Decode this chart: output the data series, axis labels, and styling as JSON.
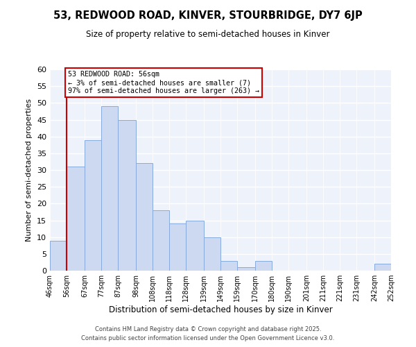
{
  "title": "53, REDWOOD ROAD, KINVER, STOURBRIDGE, DY7 6JP",
  "subtitle": "Size of property relative to semi-detached houses in Kinver",
  "xlabel": "Distribution of semi-detached houses by size in Kinver",
  "ylabel": "Number of semi-detached properties",
  "bar_edges": [
    46,
    56,
    67,
    77,
    87,
    98,
    108,
    118,
    128,
    139,
    149,
    159,
    170,
    180,
    190,
    201,
    211,
    221,
    231,
    242,
    252
  ],
  "bar_heights": [
    9,
    31,
    39,
    49,
    45,
    32,
    18,
    14,
    15,
    10,
    3,
    1,
    3,
    0,
    0,
    0,
    0,
    0,
    0,
    2
  ],
  "bar_color": "#ccd9f0",
  "bar_edgecolor": "#88aadd",
  "red_line_x": 56,
  "ylim": [
    0,
    60
  ],
  "annotation_title": "53 REDWOOD ROAD: 56sqm",
  "annotation_line1": "← 3% of semi-detached houses are smaller (7)",
  "annotation_line2": "97% of semi-detached houses are larger (263) →",
  "annotation_box_edgecolor": "#cc0000",
  "red_line_color": "#cc0000",
  "footer_line1": "Contains HM Land Registry data © Crown copyright and database right 2025.",
  "footer_line2": "Contains public sector information licensed under the Open Government Licence v3.0.",
  "bg_color": "#ffffff",
  "plot_bg_color": "#eef2fb",
  "tick_labels": [
    "46sqm",
    "56sqm",
    "67sqm",
    "77sqm",
    "87sqm",
    "98sqm",
    "108sqm",
    "118sqm",
    "128sqm",
    "139sqm",
    "149sqm",
    "159sqm",
    "170sqm",
    "180sqm",
    "190sqm",
    "201sqm",
    "211sqm",
    "221sqm",
    "231sqm",
    "242sqm",
    "252sqm"
  ],
  "yticks": [
    0,
    5,
    10,
    15,
    20,
    25,
    30,
    35,
    40,
    45,
    50,
    55,
    60
  ]
}
